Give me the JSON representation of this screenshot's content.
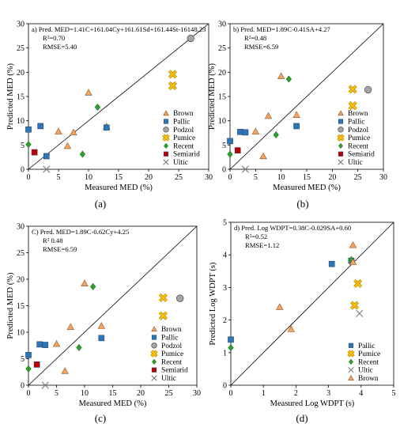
{
  "chart_data": [
    {
      "type": "scatter",
      "panel_label": "(a)",
      "equation": "a) Pred. MED=1.41C+161.04Cy+161.61Sd+161.44St-16148.23",
      "stats": [
        "R²=0.70",
        "RMSE=5.40"
      ],
      "xlabel": "Measured MED (%)",
      "ylabel": "Predicted MED (%)",
      "xlim": [
        0,
        30
      ],
      "ylim": [
        0,
        30
      ],
      "xticks": [
        0,
        5,
        10,
        15,
        20,
        25,
        30
      ],
      "yticks": [
        0,
        5,
        10,
        15,
        20,
        25,
        30
      ],
      "one_to_one_line": true,
      "legend_position": "lower-right",
      "series": [
        {
          "name": "Brown",
          "marker": "triangle",
          "color": "#f4a460",
          "points": [
            [
              5,
              7.8
            ],
            [
              6.5,
              4.8
            ],
            [
              7.5,
              7.6
            ],
            [
              10,
              15.8
            ],
            [
              13,
              8.8
            ]
          ]
        },
        {
          "name": "Pallic",
          "marker": "square",
          "color": "#2e75b6",
          "points": [
            [
              0,
              8.2
            ],
            [
              2,
              8.9
            ],
            [
              3,
              2.7
            ],
            [
              13,
              8.6
            ]
          ]
        },
        {
          "name": "Podzol",
          "marker": "circle",
          "color": "#a6a6a6",
          "points": [
            [
              27,
              27
            ]
          ]
        },
        {
          "name": "Pumice",
          "marker": "x-bold",
          "color": "#ffc000",
          "points": [
            [
              24,
              19.6
            ],
            [
              24,
              17.2
            ]
          ]
        },
        {
          "name": "Recent",
          "marker": "diamond",
          "color": "#2ca02c",
          "points": [
            [
              0,
              5.1
            ],
            [
              9,
              3.1
            ],
            [
              11.5,
              12.8
            ]
          ]
        },
        {
          "name": "Semiarid",
          "marker": "square",
          "color": "#c00000",
          "points": [
            [
              1,
              3.5
            ]
          ]
        },
        {
          "name": "Ultic",
          "marker": "x-thin",
          "color": "#808080",
          "points": [
            [
              3,
              0
            ]
          ]
        }
      ]
    },
    {
      "type": "scatter",
      "panel_label": "(b)",
      "equation": "b) Pred. MED=1.89C-0.41SA+4.27",
      "stats": [
        "R²=0.48",
        "RMSE=6.59"
      ],
      "xlabel": "Measured MED (%)",
      "ylabel": "Predicted MED (%)",
      "xlim": [
        0,
        30
      ],
      "ylim": [
        0,
        30
      ],
      "xticks": [
        0,
        5,
        10,
        15,
        20,
        25,
        30
      ],
      "yticks": [
        0,
        5,
        10,
        15,
        20,
        25,
        30
      ],
      "one_to_one_line": true,
      "legend_position": "lower-right",
      "series": [
        {
          "name": "Brown",
          "marker": "triangle",
          "color": "#f4a460",
          "points": [
            [
              5,
              7.8
            ],
            [
              6.5,
              2.7
            ],
            [
              7.5,
              11
            ],
            [
              10,
              19.2
            ],
            [
              13,
              11.2
            ]
          ]
        },
        {
          "name": "Pallic",
          "marker": "square",
          "color": "#2e75b6",
          "points": [
            [
              0,
              5.8
            ],
            [
              2,
              7.7
            ],
            [
              3,
              7.6
            ],
            [
              13,
              8.9
            ]
          ]
        },
        {
          "name": "Podzol",
          "marker": "circle",
          "color": "#a6a6a6",
          "points": [
            [
              27,
              16.4
            ]
          ]
        },
        {
          "name": "Pumice",
          "marker": "x-bold",
          "color": "#ffc000",
          "points": [
            [
              24,
              16.5
            ],
            [
              24,
              13.1
            ]
          ]
        },
        {
          "name": "Recent",
          "marker": "diamond",
          "color": "#2ca02c",
          "points": [
            [
              0,
              3.1
            ],
            [
              9,
              7.1
            ],
            [
              11.5,
              18.6
            ]
          ]
        },
        {
          "name": "Semiarid",
          "marker": "square",
          "color": "#c00000",
          "points": [
            [
              1.5,
              3.9
            ]
          ]
        },
        {
          "name": "Ultic",
          "marker": "x-thin",
          "color": "#808080",
          "points": [
            [
              3,
              0
            ]
          ]
        }
      ]
    },
    {
      "type": "scatter",
      "panel_label": "(c)",
      "equation": "C) Pred. MED=1.89C-0.62Cy+4.25",
      "stats": [
        "R² 0.48",
        "RMSE=6.59"
      ],
      "xlabel": "Measured MED (%)",
      "ylabel": "Predicted MED (%)",
      "xlim": [
        0,
        30
      ],
      "ylim": [
        0,
        30
      ],
      "xticks": [
        0,
        5,
        10,
        15,
        20,
        25,
        30
      ],
      "yticks": [
        0,
        5,
        10,
        15,
        20,
        25,
        30
      ],
      "one_to_one_line": true,
      "legend_position": "lower-right",
      "series": [
        {
          "name": "Brown",
          "marker": "triangle",
          "color": "#f4a460",
          "points": [
            [
              5,
              7.8
            ],
            [
              6.5,
              2.7
            ],
            [
              7.5,
              11
            ],
            [
              10,
              19.2
            ],
            [
              13,
              11.2
            ]
          ]
        },
        {
          "name": "Pallic",
          "marker": "square",
          "color": "#2e75b6",
          "points": [
            [
              0,
              5.7
            ],
            [
              2,
              7.7
            ],
            [
              3,
              7.6
            ],
            [
              13,
              8.9
            ]
          ]
        },
        {
          "name": "Podzol",
          "marker": "circle",
          "color": "#a6a6a6",
          "points": [
            [
              27,
              16.4
            ]
          ]
        },
        {
          "name": "Pumice",
          "marker": "x-bold",
          "color": "#ffc000",
          "points": [
            [
              24,
              16.5
            ],
            [
              24,
              13.1
            ]
          ]
        },
        {
          "name": "Recent",
          "marker": "diamond",
          "color": "#2ca02c",
          "points": [
            [
              0,
              3.1
            ],
            [
              9,
              7.1
            ],
            [
              11.5,
              18.6
            ]
          ]
        },
        {
          "name": "Semiarid",
          "marker": "square",
          "color": "#c00000",
          "points": [
            [
              1.5,
              3.9
            ]
          ]
        },
        {
          "name": "Ultic",
          "marker": "x-thin",
          "color": "#808080",
          "points": [
            [
              3,
              0
            ]
          ]
        }
      ]
    },
    {
      "type": "scatter",
      "panel_label": "(d)",
      "equation": "d) Pred. Log WDPT=0.38C-0.029SA+0.60",
      "stats": [
        "R²=0.52",
        "RMSE=1.12"
      ],
      "xlabel": "Measured Log WDPT (s)",
      "ylabel": "Predicted Log WDPT (s)",
      "xlim": [
        0,
        5
      ],
      "ylim": [
        0,
        5
      ],
      "xticks": [
        0,
        1,
        2,
        3,
        4,
        5
      ],
      "yticks": [
        0,
        1,
        2,
        3,
        4,
        5
      ],
      "one_to_one_line": true,
      "legend_position": "lower-right",
      "series": [
        {
          "name": "Pallic",
          "marker": "square",
          "color": "#2e75b6",
          "points": [
            [
              0,
              1.4
            ],
            [
              3.1,
              3.72
            ],
            [
              3.7,
              3.82
            ]
          ]
        },
        {
          "name": "Pumice",
          "marker": "x-bold",
          "color": "#ffc000",
          "points": [
            [
              3.9,
              3.12
            ],
            [
              3.8,
              2.45
            ]
          ]
        },
        {
          "name": "Recent",
          "marker": "diamond",
          "color": "#2ca02c",
          "points": [
            [
              0,
              1.15
            ],
            [
              3.7,
              3.85
            ]
          ]
        },
        {
          "name": "Ultic",
          "marker": "x-thin",
          "color": "#808080",
          "points": [
            [
              3.95,
              2.2
            ]
          ]
        },
        {
          "name": "Brown",
          "marker": "triangle",
          "color": "#f4a460",
          "points": [
            [
              1.5,
              2.4
            ],
            [
              1.85,
              1.72
            ],
            [
              3.75,
              4.3
            ],
            [
              3.75,
              3.78
            ]
          ]
        }
      ]
    }
  ]
}
